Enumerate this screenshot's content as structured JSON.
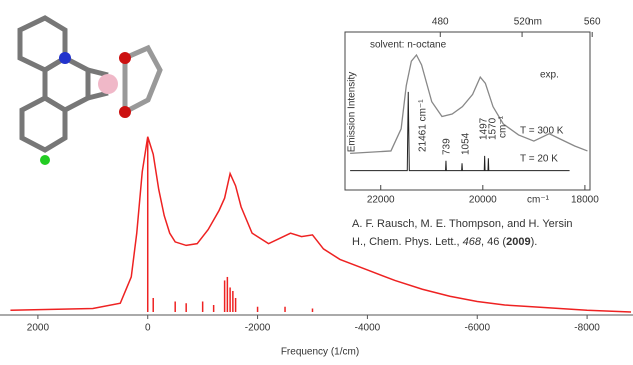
{
  "chart_data": [
    {
      "type": "line",
      "xlabel": "Frequency (1/cm)",
      "xlim": [
        2690,
        -8836
      ],
      "ylim": [
        0,
        105
      ],
      "xticks": [
        2000,
        0,
        -2000,
        -4000,
        -6000,
        -8000
      ],
      "series": [
        {
          "kind": "line",
          "color": "#ee2222",
          "x": [
            2500,
            1000,
            500,
            300,
            200,
            100,
            0,
            -100,
            -200,
            -300,
            -400,
            -500,
            -700,
            -900,
            -1100,
            -1300,
            -1400,
            -1500,
            -1600,
            -1700,
            -1900,
            -2200,
            -2400,
            -2600,
            -2800,
            -3000,
            -3200,
            -3500,
            -4000,
            -4500,
            -5000,
            -5500,
            -6000,
            -6500,
            -7000,
            -8000,
            -8800
          ],
          "values": [
            1,
            2,
            5,
            20,
            45,
            80,
            100,
            90,
            70,
            55,
            45,
            40,
            38,
            39,
            47,
            58,
            65,
            79,
            72,
            60,
            45,
            39,
            42,
            45,
            43,
            44,
            36,
            30,
            24,
            18,
            13,
            9,
            6,
            4,
            3,
            1,
            0
          ]
        },
        {
          "kind": "stick",
          "color": "#ee2222",
          "x": [
            0,
            -100,
            -500,
            -700,
            -1000,
            -1200,
            -1400,
            -1450,
            -1500,
            -1550,
            -1600,
            -2000,
            -2500,
            -3000
          ],
          "values": [
            98,
            8,
            6,
            5,
            6,
            4,
            18,
            20,
            14,
            12,
            8,
            3,
            3,
            2
          ]
        }
      ]
    },
    {
      "type": "line",
      "ylabel": "Emission Intensity",
      "xlabel": "cm⁻¹",
      "x2label": "nm",
      "xlim": [
        22700,
        17900
      ],
      "ylim": [
        0,
        100
      ],
      "xticks": [
        22000,
        20000,
        18000
      ],
      "x2ticks": [
        480,
        520,
        560
      ],
      "annotations": [
        "solvent: n-octane",
        "exp.",
        "21461 cm⁻¹",
        "739",
        "1054",
        "1497",
        "1570",
        "cm⁻¹"
      ],
      "series": [
        {
          "name": "T = 300 K",
          "color": "#888888",
          "x": [
            22600,
            21800,
            21600,
            21500,
            21400,
            21300,
            21200,
            21000,
            20800,
            20600,
            20400,
            20200,
            20050,
            19950,
            19800,
            19600,
            19300,
            19000,
            18800,
            18700,
            18500,
            18200,
            17950
          ],
          "values": [
            20,
            22,
            40,
            75,
            95,
            100,
            92,
            62,
            50,
            52,
            58,
            68,
            82,
            77,
            58,
            44,
            35,
            30,
            34,
            36,
            32,
            26,
            22
          ]
        },
        {
          "name": "T = 20 K",
          "color": "#222222",
          "x": [
            22600,
            21480,
            21461,
            21440,
            20730,
            20722,
            20714,
            20415,
            20407,
            20399,
            19972,
            19964,
            19956,
            19899,
            19891,
            19883,
            18300
          ],
          "values": [
            6,
            6,
            70,
            6,
            6,
            14,
            6,
            6,
            12,
            6,
            6,
            18,
            6,
            6,
            16,
            6,
            6
          ]
        }
      ]
    }
  ],
  "citation": {
    "authors": "A. F. Rausch, M. E. Thompson, and H. Yersin",
    "line2_start": "H., Chem. Phys. Lett., ",
    "volume": "468",
    "pages": ", 46 (",
    "year": "2009",
    "end": ")."
  }
}
